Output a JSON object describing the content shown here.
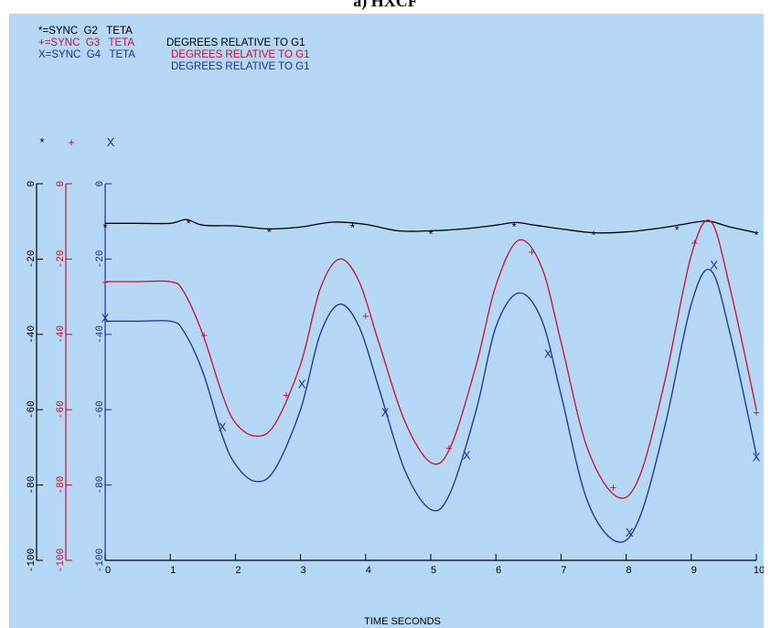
{
  "top_caption": "a) HXCF",
  "chart_data": {
    "type": "line",
    "title": "",
    "xlabel": "TIME SECONDS",
    "ylabel": "",
    "xlim": [
      0,
      10
    ],
    "ylim": [
      -100,
      0
    ],
    "x_ticks": [
      "0",
      "1",
      "2",
      "3",
      "4",
      "5",
      "6",
      "7",
      "8",
      "9",
      "10"
    ],
    "y_ticks": [
      "0",
      "-20",
      "-40",
      "-60",
      "-80",
      "-100"
    ],
    "grid": false,
    "legend_position": "top-left",
    "series": [
      {
        "name": "SYNC G2 TETA",
        "symbol": "*",
        "label": "*=SYNC  G2   TETA",
        "description": "DEGREES RELATIVE TO G1",
        "color": "#000000",
        "x": [
          0,
          0.5,
          1.0,
          1.25,
          1.5,
          2.0,
          2.5,
          3.0,
          3.5,
          4.0,
          4.5,
          5.0,
          5.5,
          6.0,
          6.3,
          6.6,
          7.0,
          7.5,
          8.0,
          8.5,
          8.8,
          9.1,
          9.3,
          9.6,
          10.0
        ],
        "y": [
          -10.5,
          -10.5,
          -10.5,
          -9.5,
          -11,
          -11.2,
          -12,
          -11.5,
          -10.2,
          -10.8,
          -12.5,
          -12.5,
          -12,
          -11,
          -10.3,
          -11,
          -12,
          -13,
          -12.8,
          -11.8,
          -11,
          -10.1,
          -10.0,
          -11.5,
          -13
        ]
      },
      {
        "name": "SYNC G3 TETA",
        "symbol": "+",
        "label": "+=SYNC  G3   TETA",
        "description": "DEGREES RELATIVE TO G1",
        "color": "#c8102e",
        "x": [
          0,
          0.5,
          1.0,
          1.2,
          1.5,
          1.8,
          2.0,
          2.3,
          2.6,
          3.0,
          3.3,
          3.6,
          3.9,
          4.2,
          4.6,
          5.0,
          5.3,
          5.7,
          6.0,
          6.35,
          6.7,
          7.0,
          7.4,
          7.85,
          8.2,
          8.6,
          9.0,
          9.3,
          9.6,
          10.0
        ],
        "y": [
          -26,
          -26,
          -26,
          -28.5,
          -40,
          -56,
          -63.5,
          -67,
          -64,
          -48,
          -28,
          -20,
          -26,
          -42,
          -63,
          -74,
          -70,
          -48,
          -27,
          -15,
          -22,
          -42,
          -70,
          -83,
          -78,
          -52,
          -19,
          -10,
          -28,
          -60
        ]
      },
      {
        "name": "SYNC G4 TETA",
        "symbol": "X",
        "label": "X=SYNC  G4   TETA",
        "description": "DEGREES RELATIVE TO G1",
        "color": "#1a2f9e",
        "x": [
          0,
          0.5,
          1.0,
          1.2,
          1.5,
          1.8,
          2.0,
          2.3,
          2.6,
          3.0,
          3.3,
          3.6,
          3.9,
          4.2,
          4.6,
          5.0,
          5.3,
          5.7,
          6.0,
          6.35,
          6.7,
          7.0,
          7.4,
          7.85,
          8.2,
          8.6,
          9.0,
          9.3,
          9.6,
          10.0
        ],
        "y": [
          -36.5,
          -36.5,
          -36.5,
          -39,
          -50,
          -67,
          -74.5,
          -79,
          -76,
          -60,
          -40,
          -32,
          -38,
          -54,
          -76,
          -86.5,
          -82,
          -60,
          -38,
          -29,
          -36,
          -56,
          -84,
          -95,
          -89,
          -64,
          -32,
          -23,
          -40,
          -72
        ]
      }
    ],
    "markers": {
      "SYNC G2 TETA": [
        [
          0,
          -10.5
        ],
        [
          1.28,
          -9.5
        ],
        [
          2.52,
          -11.8
        ],
        [
          3.8,
          -10.5
        ],
        [
          5.0,
          -12.3
        ],
        [
          6.28,
          -10.3
        ],
        [
          7.5,
          -12.5
        ],
        [
          8.78,
          -11.2
        ],
        [
          10.0,
          -12.5
        ]
      ],
      "SYNC G3 TETA": [
        [
          0,
          -26
        ],
        [
          1.52,
          -40
        ],
        [
          2.78,
          -56
        ],
        [
          4.0,
          -35
        ],
        [
          5.28,
          -70
        ],
        [
          6.55,
          -18
        ],
        [
          7.8,
          -80.5
        ],
        [
          9.05,
          -15.5
        ],
        [
          10.0,
          -60.5
        ]
      ],
      "SYNC G4 TETA": [
        [
          0,
          -35.5
        ],
        [
          1.8,
          -64.5
        ],
        [
          3.02,
          -53
        ],
        [
          4.3,
          -60.5
        ],
        [
          5.55,
          -72
        ],
        [
          6.8,
          -45
        ],
        [
          8.05,
          -92.5
        ],
        [
          9.35,
          -21.5
        ],
        [
          10.0,
          -72.5
        ]
      ]
    }
  }
}
